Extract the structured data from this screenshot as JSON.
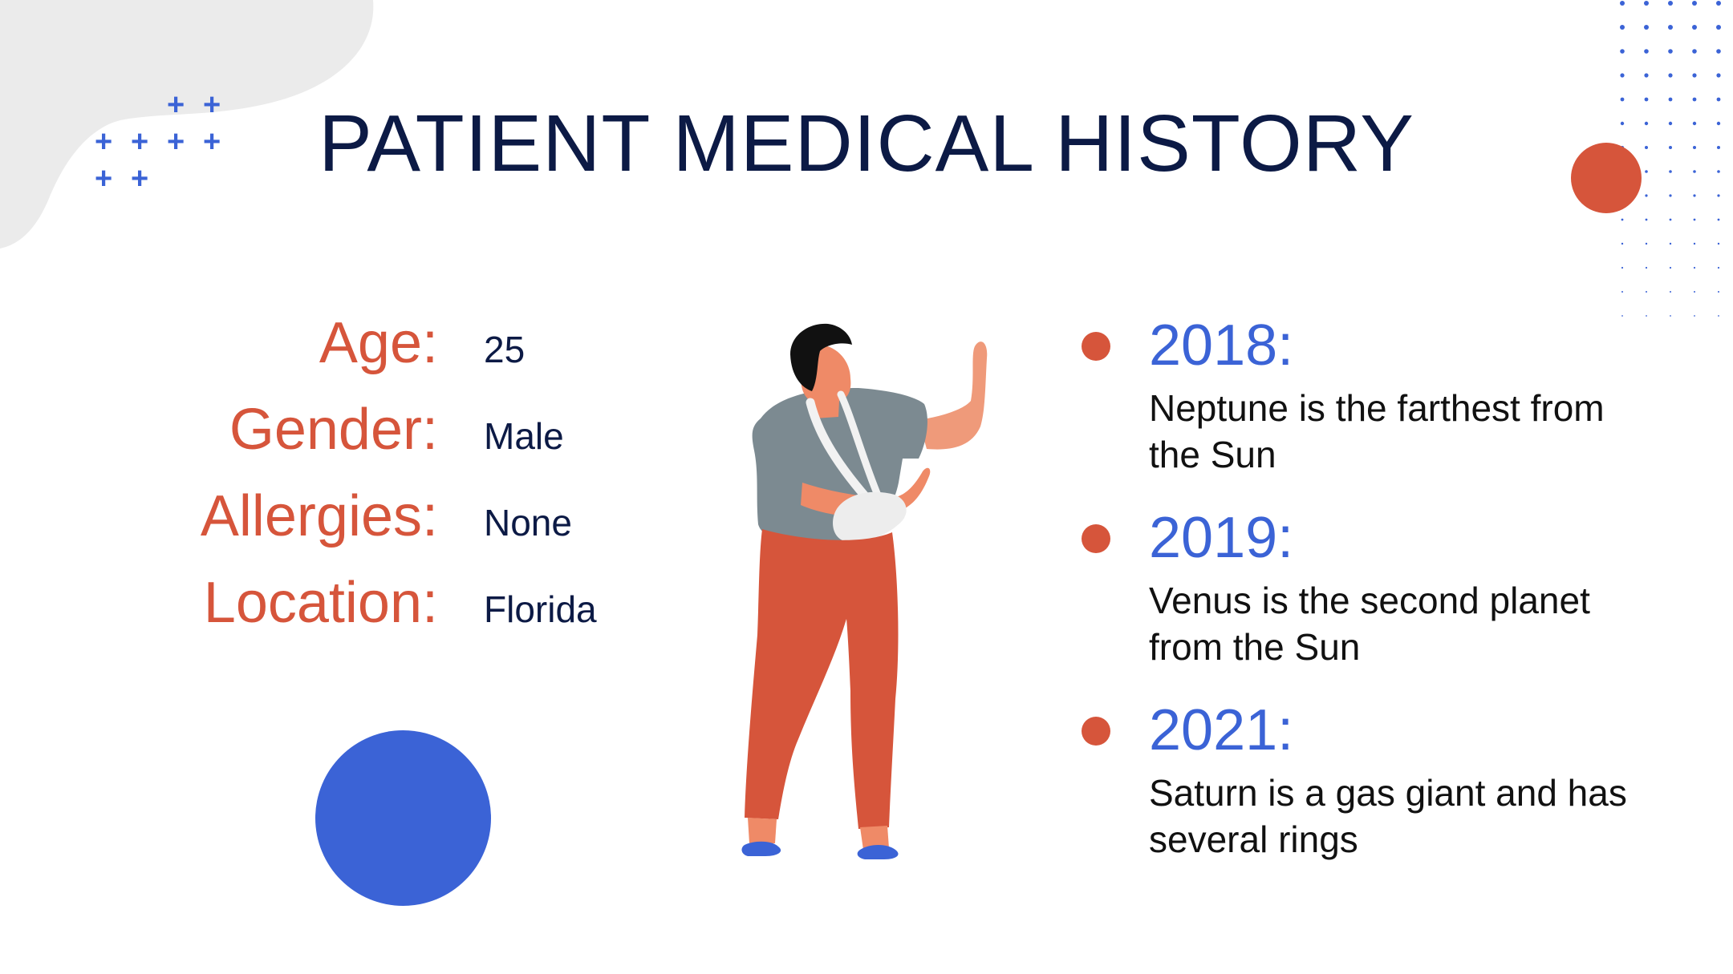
{
  "title": "PATIENT MEDICAL HISTORY",
  "patient": {
    "fields": [
      {
        "label": "Age:",
        "value": "25"
      },
      {
        "label": "Gender:",
        "value": "Male"
      },
      {
        "label": "Allergies:",
        "value": "None"
      },
      {
        "label": "Location:",
        "value": "Florida"
      }
    ]
  },
  "timeline": [
    {
      "year": "2018:",
      "text": "Neptune is the farthest from the Sun"
    },
    {
      "year": "2019:",
      "text": "Venus is the second planet from the Sun"
    },
    {
      "year": "2021:",
      "text": "Saturn is a gas giant and has several rings"
    }
  ],
  "colors": {
    "title": "#0c1a45",
    "accent_red": "#d6553b",
    "accent_blue": "#3b63d6",
    "shirt": "#7c8a91",
    "skin": "#ef8a67"
  },
  "illustration": "patient-with-arm-sling-illustration"
}
